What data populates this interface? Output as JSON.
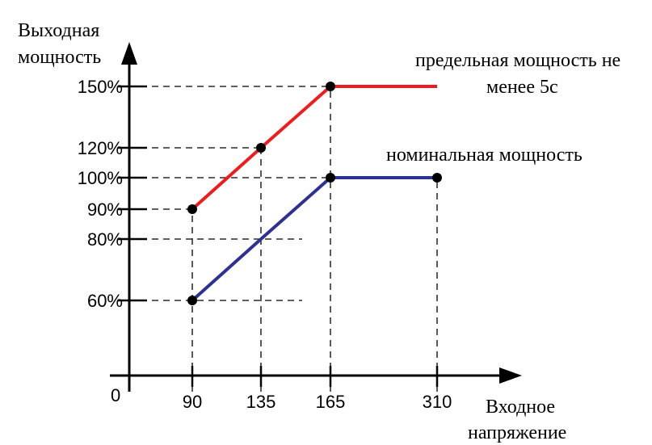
{
  "chart_data": {
    "type": "line",
    "ylabel": "Выходная мощность",
    "ylabel_lines": [
      "Выходная",
      "мощность"
    ],
    "xlabel": "Входное напряжение",
    "xlabel_lines": [
      "Входное",
      "напряжение"
    ],
    "origin_label": "0",
    "x_ticks": [
      {
        "value": 90,
        "label": "90"
      },
      {
        "value": 135,
        "label": "135"
      },
      {
        "value": 165,
        "label": "165"
      },
      {
        "value": 310,
        "label": "310"
      }
    ],
    "y_ticks": [
      {
        "value": 60,
        "label": "60%"
      },
      {
        "value": 80,
        "label": "80%"
      },
      {
        "value": 90,
        "label": "90%"
      },
      {
        "value": 100,
        "label": "100%"
      },
      {
        "value": 120,
        "label": "120%"
      },
      {
        "value": 150,
        "label": "150%"
      }
    ],
    "series": [
      {
        "name": "предельная мощность не менее 5с",
        "label_lines": [
          "предельная мощность не",
          "менее 5с"
        ],
        "color": "#ee1c1c",
        "points": [
          {
            "x": 90,
            "y": 90,
            "marker": true
          },
          {
            "x": 135,
            "y": 120,
            "marker": true
          },
          {
            "x": 165,
            "y": 150,
            "marker": true
          },
          {
            "x": 310,
            "y": 150,
            "marker": false
          }
        ]
      },
      {
        "name": "номинальная мощность",
        "label_lines": [
          "номинальная мощность"
        ],
        "color": "#2e3192",
        "points": [
          {
            "x": 90,
            "y": 60,
            "marker": true
          },
          {
            "x": 135,
            "y": 80,
            "marker": false
          },
          {
            "x": 165,
            "y": 100,
            "marker": true
          },
          {
            "x": 310,
            "y": 100,
            "marker": true
          }
        ]
      }
    ],
    "reference_lines": [
      {
        "type": "horizontal",
        "y": 150,
        "x_from": 0,
        "x_to": 310
      },
      {
        "type": "horizontal",
        "y": 120,
        "x_from": 0,
        "x_to": 135
      },
      {
        "type": "horizontal",
        "y": 100,
        "x_from": 0,
        "x_to": 310
      },
      {
        "type": "horizontal",
        "y": 90,
        "x_from": 0,
        "x_to": 90
      },
      {
        "type": "horizontal",
        "y": 80,
        "x_from": 0,
        "x_to": "end"
      },
      {
        "type": "horizontal",
        "y": 60,
        "x_from": 0,
        "x_to": "end"
      },
      {
        "type": "vertical",
        "x": 90,
        "y_from": 0,
        "y_to": 90
      },
      {
        "type": "vertical",
        "x": 135,
        "y_from": 0,
        "y_to": 120
      },
      {
        "type": "vertical",
        "x": 165,
        "y_from": 0,
        "y_to": 150
      },
      {
        "type": "vertical",
        "x": 310,
        "y_from": 0,
        "y_to": 100
      }
    ],
    "colors": {
      "axis": "#000000",
      "guides": "#000000",
      "marker": "#000000"
    }
  }
}
